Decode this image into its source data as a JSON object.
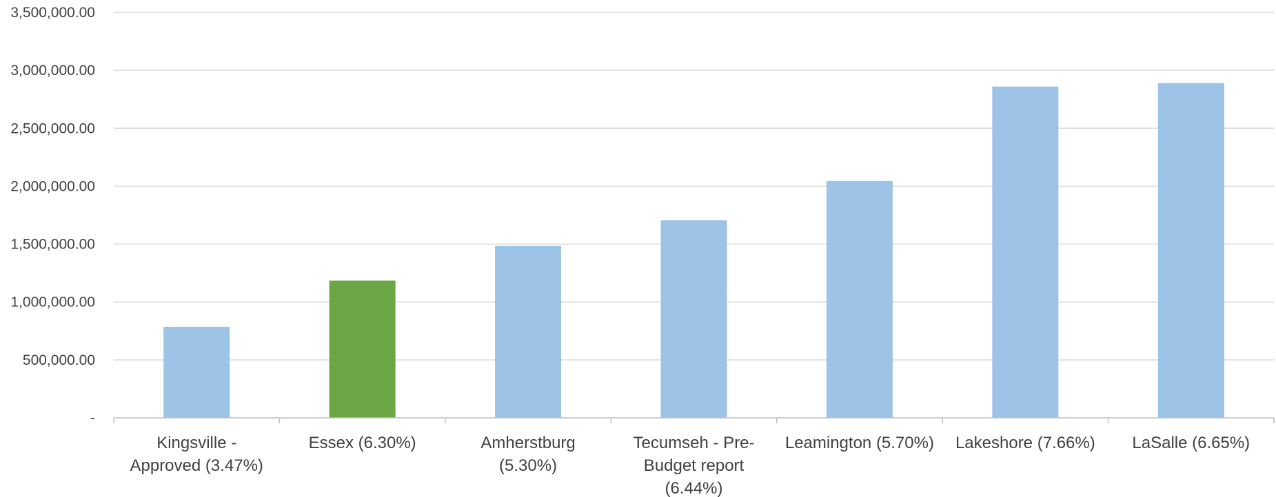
{
  "chart_data": {
    "type": "bar",
    "categories": [
      [
        "Kingsville -",
        "Approved (3.47%)"
      ],
      [
        "Essex (6.30%)"
      ],
      [
        "Amherstburg",
        "(5.30%)"
      ],
      [
        "Tecumseh - Pre-",
        "Budget report",
        "(6.44%)"
      ],
      [
        "Leamington (5.70%)"
      ],
      [
        "Lakeshore (7.66%)"
      ],
      [
        "LaSalle (6.65%)"
      ]
    ],
    "values": [
      785000,
      1185000,
      1485000,
      1705000,
      2045000,
      2860000,
      2890000
    ],
    "highlight_index": 1,
    "colors": {
      "default_bar": "#9dc3e6",
      "highlight_bar": "#6aa744",
      "grid": "#d9d9d9",
      "axis": "#bfbfbf",
      "text": "#404040"
    },
    "ylim": [
      0,
      3500000
    ],
    "yticks": [
      {
        "value": 0,
        "label": "-"
      },
      {
        "value": 500000,
        "label": "500,000.00"
      },
      {
        "value": 1000000,
        "label": "1,000,000.00"
      },
      {
        "value": 1500000,
        "label": "1,500,000.00"
      },
      {
        "value": 2000000,
        "label": "2,000,000.00"
      },
      {
        "value": 2500000,
        "label": "2,500,000.00"
      },
      {
        "value": 3000000,
        "label": "3,000,000.00"
      },
      {
        "value": 3500000,
        "label": "3,500,000.00"
      }
    ],
    "grid": true,
    "title": "",
    "xlabel": "",
    "ylabel": ""
  }
}
